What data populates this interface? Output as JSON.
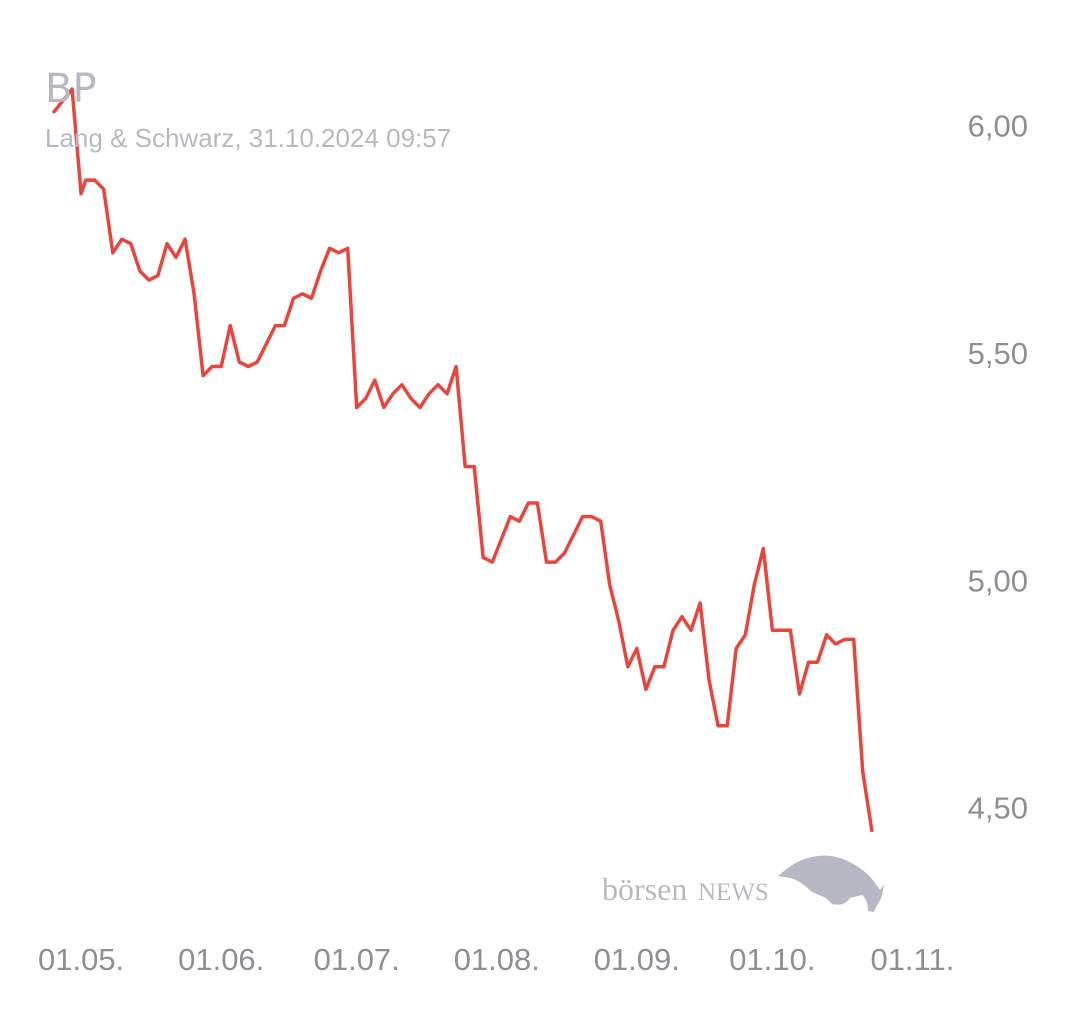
{
  "chart_data": {
    "type": "line",
    "title": "BP",
    "subtitle": "Lang & Schwarz, 31.10.2024 09:57",
    "ylim": [
      4.385,
      6.1
    ],
    "yticks": [
      {
        "value": 6.0,
        "label": "6,00"
      },
      {
        "value": 5.5,
        "label": "5,50"
      },
      {
        "value": 5.0,
        "label": "5,00"
      },
      {
        "value": 4.5,
        "label": "4,50"
      }
    ],
    "xlim": [
      "2024-04-23",
      "2024-11-06"
    ],
    "xticks": [
      {
        "date": "2024-05-01",
        "label": "01.05."
      },
      {
        "date": "2024-06-01",
        "label": "01.06."
      },
      {
        "date": "2024-07-01",
        "label": "01.07."
      },
      {
        "date": "2024-08-01",
        "label": "01.08."
      },
      {
        "date": "2024-09-01",
        "label": "01.09."
      },
      {
        "date": "2024-10-01",
        "label": "01.10."
      },
      {
        "date": "2024-11-01",
        "label": "01.11."
      }
    ],
    "line_color": "#e8453c",
    "axis_label_color": "#8e8e98",
    "series": [
      {
        "points": [
          [
            "2024-04-25",
            6.03
          ],
          [
            "2024-04-29",
            6.08
          ],
          [
            "2024-04-31",
            5.85
          ],
          [
            "2024-05-02",
            5.88
          ],
          [
            "2024-05-04",
            5.88
          ],
          [
            "2024-05-06",
            5.86
          ],
          [
            "2024-05-08",
            5.72
          ],
          [
            "2024-05-10",
            5.75
          ],
          [
            "2024-05-12",
            5.74
          ],
          [
            "2024-05-14",
            5.68
          ],
          [
            "2024-05-16",
            5.66
          ],
          [
            "2024-05-18",
            5.67
          ],
          [
            "2024-05-20",
            5.74
          ],
          [
            "2024-05-22",
            5.71
          ],
          [
            "2024-05-24",
            5.75
          ],
          [
            "2024-05-26",
            5.63
          ],
          [
            "2024-05-28",
            5.45
          ],
          [
            "2024-05-30",
            5.47
          ],
          [
            "2024-06-01",
            5.47
          ],
          [
            "2024-06-03",
            5.56
          ],
          [
            "2024-06-05",
            5.48
          ],
          [
            "2024-06-07",
            5.47
          ],
          [
            "2024-06-09",
            5.48
          ],
          [
            "2024-06-11",
            5.52
          ],
          [
            "2024-06-13",
            5.56
          ],
          [
            "2024-06-15",
            5.56
          ],
          [
            "2024-06-17",
            5.62
          ],
          [
            "2024-06-19",
            5.63
          ],
          [
            "2024-06-21",
            5.62
          ],
          [
            "2024-06-23",
            5.68
          ],
          [
            "2024-06-25",
            5.73
          ],
          [
            "2024-06-27",
            5.72
          ],
          [
            "2024-06-29",
            5.73
          ],
          [
            "2024-07-01",
            5.38
          ],
          [
            "2024-07-03",
            5.4
          ],
          [
            "2024-07-05",
            5.44
          ],
          [
            "2024-07-07",
            5.38
          ],
          [
            "2024-07-09",
            5.41
          ],
          [
            "2024-07-11",
            5.43
          ],
          [
            "2024-07-13",
            5.4
          ],
          [
            "2024-07-15",
            5.38
          ],
          [
            "2024-07-17",
            5.41
          ],
          [
            "2024-07-19",
            5.43
          ],
          [
            "2024-07-21",
            5.41
          ],
          [
            "2024-07-23",
            5.47
          ],
          [
            "2024-07-25",
            5.25
          ],
          [
            "2024-07-27",
            5.25
          ],
          [
            "2024-07-29",
            5.05
          ],
          [
            "2024-07-31",
            5.04
          ],
          [
            "2024-08-02",
            5.09
          ],
          [
            "2024-08-04",
            5.14
          ],
          [
            "2024-08-06",
            5.13
          ],
          [
            "2024-08-08",
            5.17
          ],
          [
            "2024-08-10",
            5.17
          ],
          [
            "2024-08-12",
            5.04
          ],
          [
            "2024-08-14",
            5.04
          ],
          [
            "2024-08-16",
            5.06
          ],
          [
            "2024-08-18",
            5.1
          ],
          [
            "2024-08-20",
            5.14
          ],
          [
            "2024-08-22",
            5.14
          ],
          [
            "2024-08-24",
            5.13
          ],
          [
            "2024-08-26",
            4.99
          ],
          [
            "2024-08-28",
            4.91
          ],
          [
            "2024-08-30",
            4.81
          ],
          [
            "2024-09-01",
            4.85
          ],
          [
            "2024-09-03",
            4.76
          ],
          [
            "2024-09-05",
            4.81
          ],
          [
            "2024-09-07",
            4.81
          ],
          [
            "2024-09-09",
            4.89
          ],
          [
            "2024-09-11",
            4.92
          ],
          [
            "2024-09-13",
            4.89
          ],
          [
            "2024-09-15",
            4.95
          ],
          [
            "2024-09-17",
            4.78
          ],
          [
            "2024-09-19",
            4.68
          ],
          [
            "2024-09-21",
            4.68
          ],
          [
            "2024-09-23",
            4.85
          ],
          [
            "2024-09-25",
            4.88
          ],
          [
            "2024-09-27",
            4.99
          ],
          [
            "2024-09-29",
            5.07
          ],
          [
            "2024-10-01",
            4.89
          ],
          [
            "2024-10-03",
            4.89
          ],
          [
            "2024-10-05",
            4.89
          ],
          [
            "2024-10-07",
            4.75
          ],
          [
            "2024-10-09",
            4.82
          ],
          [
            "2024-10-11",
            4.82
          ],
          [
            "2024-10-13",
            4.88
          ],
          [
            "2024-10-15",
            4.86
          ],
          [
            "2024-10-17",
            4.87
          ],
          [
            "2024-10-19",
            4.87
          ],
          [
            "2024-10-21",
            4.58
          ],
          [
            "2024-10-23",
            4.45
          ]
        ]
      }
    ]
  },
  "watermark": {
    "text_left": "börsen",
    "text_right": "NEWS",
    "color": "#b8b8c4"
  }
}
